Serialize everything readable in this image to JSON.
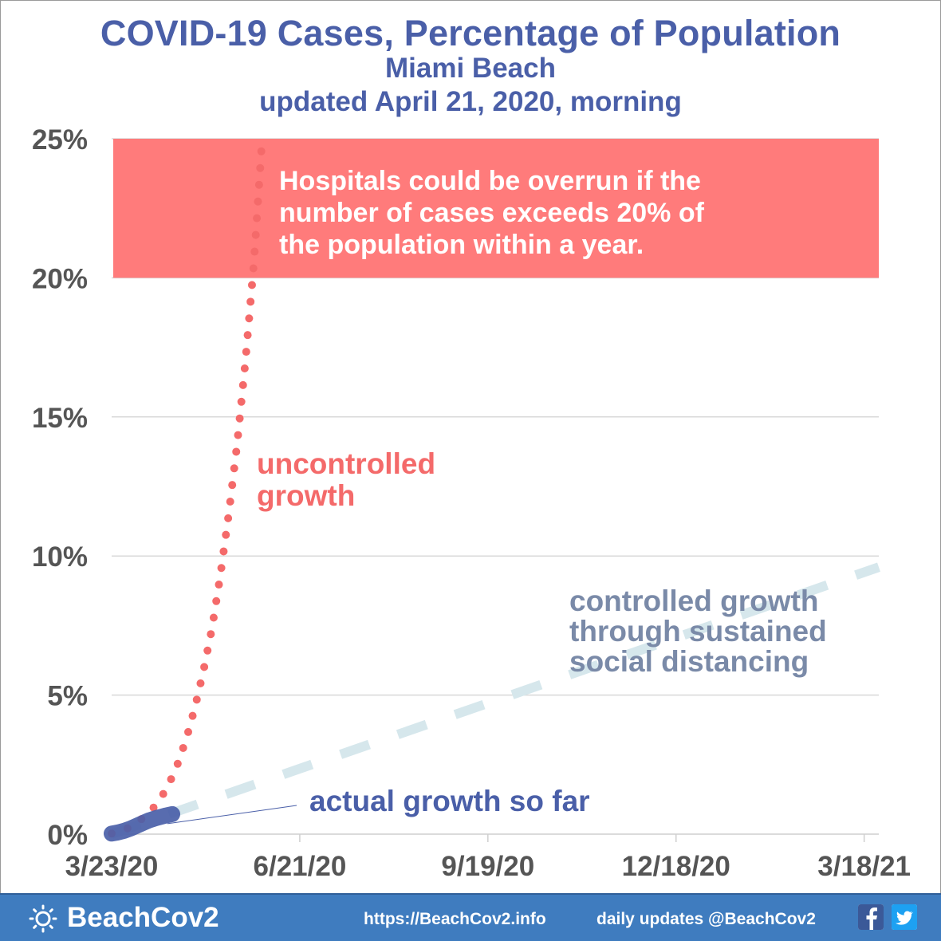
{
  "title": {
    "main": "COVID-19 Cases, Percentage of Population",
    "city": "Miami Beach",
    "updated": "updated April 21, 2020, morning"
  },
  "chart_data": {
    "type": "line",
    "title": "COVID-19 Cases, Percentage of Population",
    "xlabel": "",
    "ylabel": "",
    "x_axis": {
      "type": "date",
      "range": [
        "2020-03-23",
        "2021-03-25"
      ],
      "tick_labels": [
        "3/23/20",
        "6/21/20",
        "9/19/20",
        "12/18/20",
        "3/18/21"
      ],
      "tick_dates": [
        "2020-03-23",
        "2020-06-21",
        "2020-09-19",
        "2020-12-18",
        "2021-03-18"
      ]
    },
    "y_axis": {
      "range": [
        0,
        25
      ],
      "unit": "%",
      "tick_labels": [
        "0%",
        "5%",
        "10%",
        "15%",
        "20%",
        "25%"
      ],
      "tick_values": [
        0,
        5,
        10,
        15,
        20,
        25
      ]
    },
    "grid": "horizontal",
    "band": {
      "y_from": 20,
      "y_to": 25,
      "color": "#ff7b7b",
      "text": [
        "Hospitals could be overrun if the",
        "number of cases exceeds 20% of",
        "the population within a year."
      ]
    },
    "series": [
      {
        "label": [
          "uncontrolled",
          "growth"
        ],
        "style": "dotted",
        "color": "#f46a6a",
        "points": [
          [
            "2020-03-23",
            0.02
          ],
          [
            "2020-03-27",
            0.1
          ],
          [
            "2020-03-31",
            0.22
          ],
          [
            "2020-04-04",
            0.4
          ],
          [
            "2020-04-08",
            0.65
          ],
          [
            "2020-04-12",
            0.95
          ],
          [
            "2020-04-16",
            1.35
          ],
          [
            "2020-04-20",
            1.9
          ],
          [
            "2020-04-24",
            2.6
          ],
          [
            "2020-04-28",
            3.5
          ],
          [
            "2020-05-02",
            4.6
          ],
          [
            "2020-05-06",
            5.9
          ],
          [
            "2020-05-10",
            7.4
          ],
          [
            "2020-05-14",
            9.3
          ],
          [
            "2020-05-18",
            11.5
          ],
          [
            "2020-05-22",
            14.0
          ],
          [
            "2020-05-26",
            17.0
          ],
          [
            "2020-05-30",
            20.5
          ],
          [
            "2020-06-03",
            25.0
          ]
        ]
      },
      {
        "label": [
          "controlled growth",
          "through sustained",
          "social distancing"
        ],
        "style": "dashed",
        "color": "#d6e7ec",
        "points": [
          [
            "2020-03-23",
            0.0
          ],
          [
            "2021-03-25",
            9.6
          ]
        ]
      },
      {
        "label": [
          "actual growth so far"
        ],
        "style": "thick",
        "color": "#4a5fa8",
        "points": [
          [
            "2020-03-23",
            0.02
          ],
          [
            "2020-03-26",
            0.06
          ],
          [
            "2020-03-29",
            0.12
          ],
          [
            "2020-04-01",
            0.2
          ],
          [
            "2020-04-04",
            0.3
          ],
          [
            "2020-04-07",
            0.4
          ],
          [
            "2020-04-10",
            0.5
          ],
          [
            "2020-04-13",
            0.57
          ],
          [
            "2020-04-16",
            0.63
          ],
          [
            "2020-04-18",
            0.67
          ],
          [
            "2020-04-21",
            0.72
          ]
        ]
      }
    ]
  },
  "footer": {
    "brand": "BeachCov2",
    "url": "https://BeachCov2.info",
    "updates": "daily updates @BeachCov2"
  },
  "icons": {
    "brand": "sun-icon",
    "facebook": "facebook-icon",
    "twitter": "twitter-icon"
  },
  "colors": {
    "title": "#4a5fa8",
    "band": "#ff7b7b",
    "uncontrolled": "#f46a6a",
    "controlled": "#d6e7ec",
    "controlled_label": "#7a8aa8",
    "actual": "#4a5fa8",
    "footer": "#3f7cbf"
  }
}
